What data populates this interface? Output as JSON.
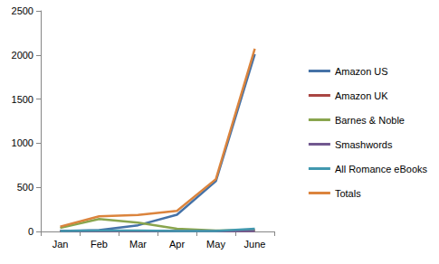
{
  "chart_data": {
    "type": "line",
    "categories": [
      "Jan",
      "Feb",
      "Mar",
      "Apr",
      "May",
      "June"
    ],
    "series": [
      {
        "name": "Amazon US",
        "color": "#4572a7",
        "values": [
          5,
          15,
          70,
          190,
          570,
          2010
        ]
      },
      {
        "name": "Amazon UK",
        "color": "#aa4643",
        "values": [
          0,
          2,
          3,
          5,
          5,
          10
        ]
      },
      {
        "name": "Barnes & Noble",
        "color": "#89a54e",
        "values": [
          40,
          140,
          100,
          30,
          10,
          15
        ]
      },
      {
        "name": "Smashwords",
        "color": "#71588f",
        "values": [
          5,
          5,
          5,
          3,
          3,
          5
        ]
      },
      {
        "name": "All Romance eBooks",
        "color": "#4198af",
        "values": [
          5,
          10,
          10,
          5,
          5,
          30
        ]
      },
      {
        "name": "Totals",
        "color": "#db843d",
        "values": [
          55,
          172,
          188,
          233,
          593,
          2070
        ]
      }
    ],
    "ylim": [
      0,
      2500
    ],
    "yticks": [
      0,
      500,
      1000,
      1500,
      2000,
      2500
    ],
    "grid": false,
    "legend": "right"
  }
}
